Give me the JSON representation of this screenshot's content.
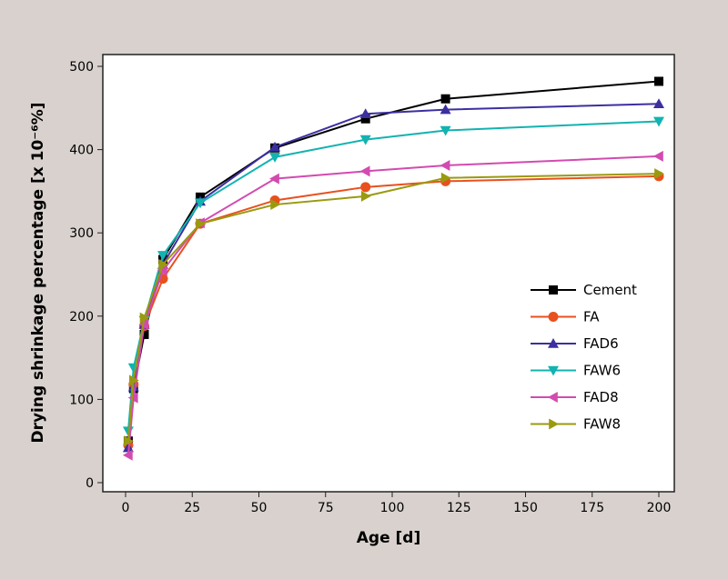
{
  "chart_data": {
    "type": "line",
    "title": "",
    "xlabel": "Age [d]",
    "ylabel": "Drying shrinkage percentage [x 10⁻⁶%]",
    "xlim": [
      -8,
      205
    ],
    "ylim": [
      0,
      500
    ],
    "xticks": [
      0,
      25,
      50,
      75,
      100,
      125,
      150,
      175,
      200
    ],
    "yticks": [
      0,
      100,
      200,
      300,
      400,
      500
    ],
    "x": [
      1,
      3,
      7,
      14,
      28,
      56,
      90,
      120,
      200
    ],
    "legend_position": "center-right",
    "series": [
      {
        "name": "Cement",
        "color": "#000000",
        "marker": "square",
        "values": [
          50,
          113,
          178,
          268,
          343,
          402,
          437,
          461,
          482
        ]
      },
      {
        "name": "FA",
        "color": "#e8501e",
        "marker": "circle",
        "values": [
          45,
          118,
          188,
          245,
          311,
          339,
          355,
          362,
          368
        ]
      },
      {
        "name": "FAD6",
        "color": "#3c2fa0",
        "marker": "triangle-up",
        "values": [
          42,
          115,
          190,
          262,
          338,
          403,
          443,
          448,
          455
        ]
      },
      {
        "name": "FAW6",
        "color": "#12b3b0",
        "marker": "triangle-down",
        "values": [
          62,
          138,
          195,
          273,
          336,
          391,
          412,
          423,
          434
        ]
      },
      {
        "name": "FAD8",
        "color": "#d24bb0",
        "marker": "triangle-left",
        "values": [
          33,
          102,
          190,
          255,
          312,
          365,
          374,
          381,
          392
        ]
      },
      {
        "name": "FAW8",
        "color": "#9a9a10",
        "marker": "triangle-right",
        "values": [
          50,
          123,
          198,
          262,
          311,
          334,
          344,
          366,
          371
        ]
      }
    ]
  }
}
